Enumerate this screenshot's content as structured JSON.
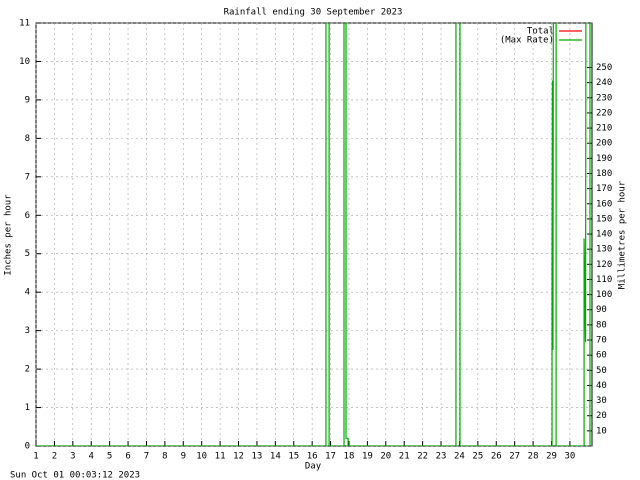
{
  "chart_data": {
    "type": "line",
    "title": "Rainfall ending 30 September 2023",
    "x_label": "Day",
    "y_label": "Inches per hour",
    "y2_label": "Millimetres per hour",
    "footer": "Sun Oct 01 00:03:12 2023",
    "xlim": [
      1,
      31.2
    ],
    "xticks": [
      1,
      2,
      3,
      4,
      5,
      6,
      7,
      8,
      9,
      10,
      11,
      12,
      13,
      14,
      15,
      16,
      17,
      18,
      19,
      20,
      21,
      22,
      23,
      24,
      25,
      26,
      27,
      28,
      29,
      30
    ],
    "ylim": [
      0,
      11
    ],
    "yticks": [
      0,
      1,
      2,
      3,
      4,
      5,
      6,
      7,
      8,
      9,
      10,
      11
    ],
    "y2lim": [
      0,
      279.4
    ],
    "y2ticks": [
      10,
      20,
      30,
      40,
      50,
      60,
      70,
      80,
      90,
      100,
      110,
      120,
      130,
      140,
      150,
      160,
      170,
      180,
      190,
      200,
      210,
      220,
      230,
      240,
      250
    ],
    "grid": true,
    "legend": "top-right",
    "x": [
      1,
      16.75,
      16.75,
      16.92,
      16.92,
      17.73,
      17.73,
      17.84,
      17.84,
      17.95,
      17.95,
      23.81,
      23.81,
      24.03,
      24.03,
      29.03,
      29.03,
      29.05,
      29.08,
      29.1,
      29.25,
      29.25,
      30.77,
      30.77,
      30.85,
      30.87,
      31.09,
      31.09
    ],
    "series": [
      {
        "name": "Total",
        "color": "#ff0000",
        "values": [
          null,
          null,
          null,
          null,
          null,
          null,
          null,
          null,
          null,
          null,
          null,
          null,
          null,
          null,
          null,
          null,
          null,
          null,
          null,
          null,
          null,
          null,
          null,
          null,
          null,
          null,
          null,
          null
        ]
      },
      {
        "name": "(Max Rate)",
        "color": "#00aa00",
        "values": [
          0,
          0,
          12,
          12,
          0,
          0,
          12,
          12,
          0.2,
          0.2,
          0,
          0,
          12,
          12,
          0,
          0,
          4.8,
          9.5,
          2.5,
          12,
          12,
          0,
          0,
          5.4,
          2.7,
          12,
          12,
          0
        ]
      }
    ]
  }
}
